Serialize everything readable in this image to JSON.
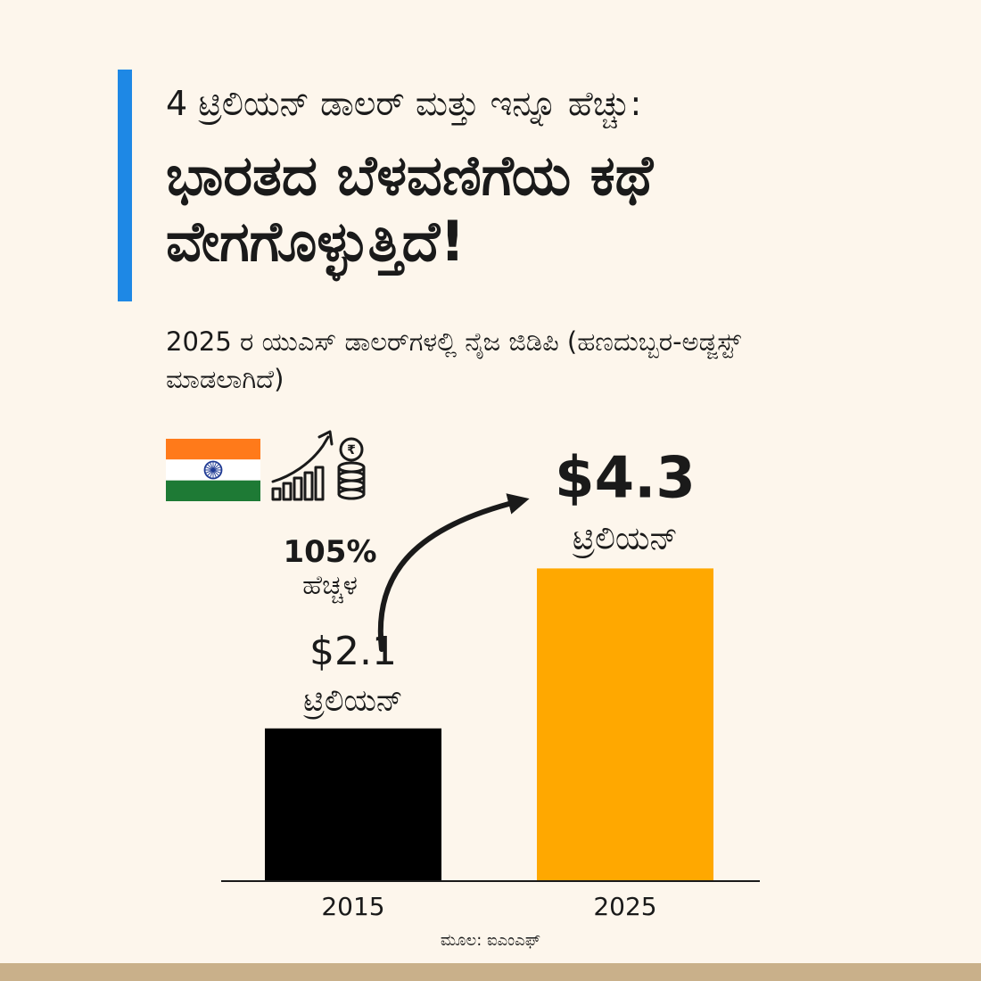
{
  "header": {
    "kicker": "4 ಟ್ರಿಲಿಯನ್ ಡಾಲರ್ ಮತ್ತು ಇನ್ನೂ ಹೆಚ್ಚು:",
    "title": "ಭಾರತದ ಬೆಳವಣಿಗೆಯ ಕಥೆ ವೇಗಗೊಳ್ಳುತ್ತಿದೆ!",
    "subtitle": "2025 ರ ಯುಎಸ್ ಡಾಲರ್‌ಗಳಲ್ಲಿ ನೈಜ ಜಿಡಿಪಿ (ಹಣದುಬ್ಬರ-ಅಡ್ಜಸ್ಟ್ ಮಾಡಲಾಗಿದೆ)"
  },
  "icons": {
    "flag": "india-flag-icon",
    "growth": "rupee-growth-chart-icon",
    "arrow": "curved-arrow-icon"
  },
  "growth": {
    "percent": "105%",
    "label": "ಹೆಚ್ಚಳ"
  },
  "chart_data": {
    "type": "bar",
    "categories": [
      "2015",
      "2025"
    ],
    "values": [
      2.1,
      4.3
    ],
    "value_labels": [
      "$2.1",
      "$4.3"
    ],
    "unit_label": "ಟ್ರಿಲಿಯನ್",
    "ylim": [
      0,
      6.5
    ],
    "colors": [
      "#000000",
      "#ffa800"
    ],
    "grid": false,
    "legend": "none"
  },
  "source": "ಮೂಲ: ಐಎಂಎಫ್",
  "colors": {
    "background": "#fdf6ec",
    "accent": "#1e88e5",
    "bar_2015": "#000000",
    "bar_2025": "#ffa800",
    "footer": "#c9b08a",
    "saffron": "#ff7a1a",
    "green": "#1e7a35",
    "chakra": "#1f3a93"
  }
}
